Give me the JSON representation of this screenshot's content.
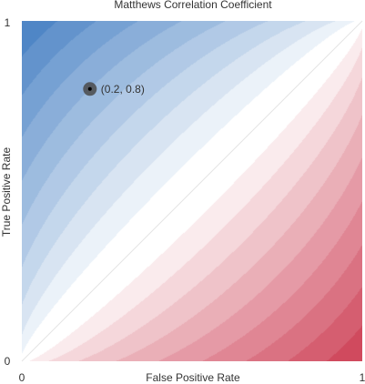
{
  "chart_data": {
    "type": "heatmap",
    "title": "Matthews Correlation Coefficient",
    "xlabel": "False Positive Rate",
    "ylabel": "True Positive Rate",
    "xlim": [
      0,
      1
    ],
    "ylim": [
      0,
      1
    ],
    "x_ticks": [
      "0",
      "1"
    ],
    "y_ticks": [
      "0",
      "1"
    ],
    "contour_band_step": 0.1,
    "colors": {
      "positive": "#4f86c6",
      "negative": "#d04a5e",
      "neutral": "#ffffff",
      "contour_line": "#ffffff"
    },
    "marker": {
      "x": 0.2,
      "y": 0.8,
      "label": "(0.2, 0.8)",
      "outer_color": "#4a4a4a",
      "inner_color": "#000000"
    }
  }
}
